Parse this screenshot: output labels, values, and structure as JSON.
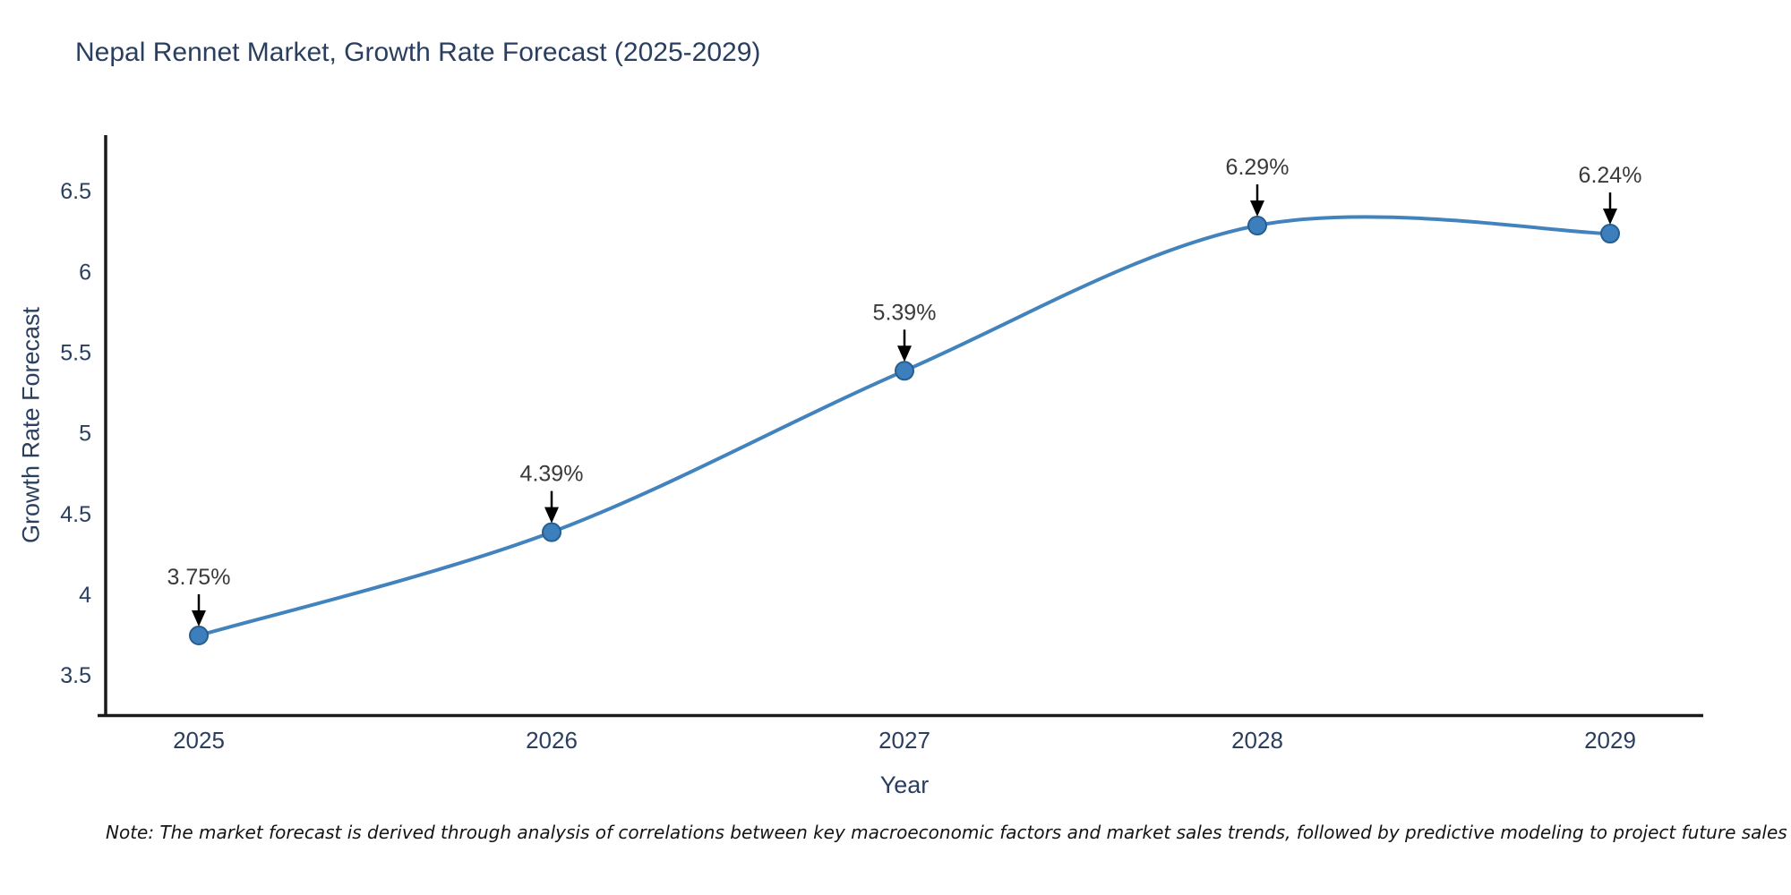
{
  "chart_data": {
    "type": "line",
    "title": "Nepal Rennet Market, Growth Rate Forecast (2025-2029)",
    "xlabel": "Year",
    "ylabel": "Growth Rate Forecast",
    "x": [
      2025,
      2026,
      2027,
      2028,
      2029
    ],
    "values": [
      3.75,
      4.39,
      5.39,
      6.29,
      6.24
    ],
    "point_labels": [
      "3.75%",
      "4.39%",
      "5.39%",
      "6.29%",
      "6.24%"
    ],
    "x_tick_labels": [
      "2025",
      "2026",
      "2027",
      "2028",
      "2029"
    ],
    "y_ticks": [
      3.5,
      4,
      4.5,
      5,
      5.5,
      6,
      6.5
    ],
    "y_tick_labels": [
      "3.5",
      "4",
      "4.5",
      "5",
      "5.5",
      "6",
      "6.5"
    ],
    "ylim": [
      3.25,
      6.85
    ],
    "grid": false,
    "legend": false,
    "line_shape": "spline",
    "annotation_arrows": true,
    "colors": {
      "line": "#4383bd",
      "marker_fill": "#3d7ebd",
      "marker_edge": "#265f8f",
      "axis": "#1a1a1a",
      "tick_text": "#2a3f5f",
      "annotation_text": "#3a3a3a",
      "arrow": "#000000"
    },
    "note": "Note: The market forecast is derived through analysis of correlations between key macroeconomic factors and market sales trends, followed by predictive modeling to project future sales"
  }
}
